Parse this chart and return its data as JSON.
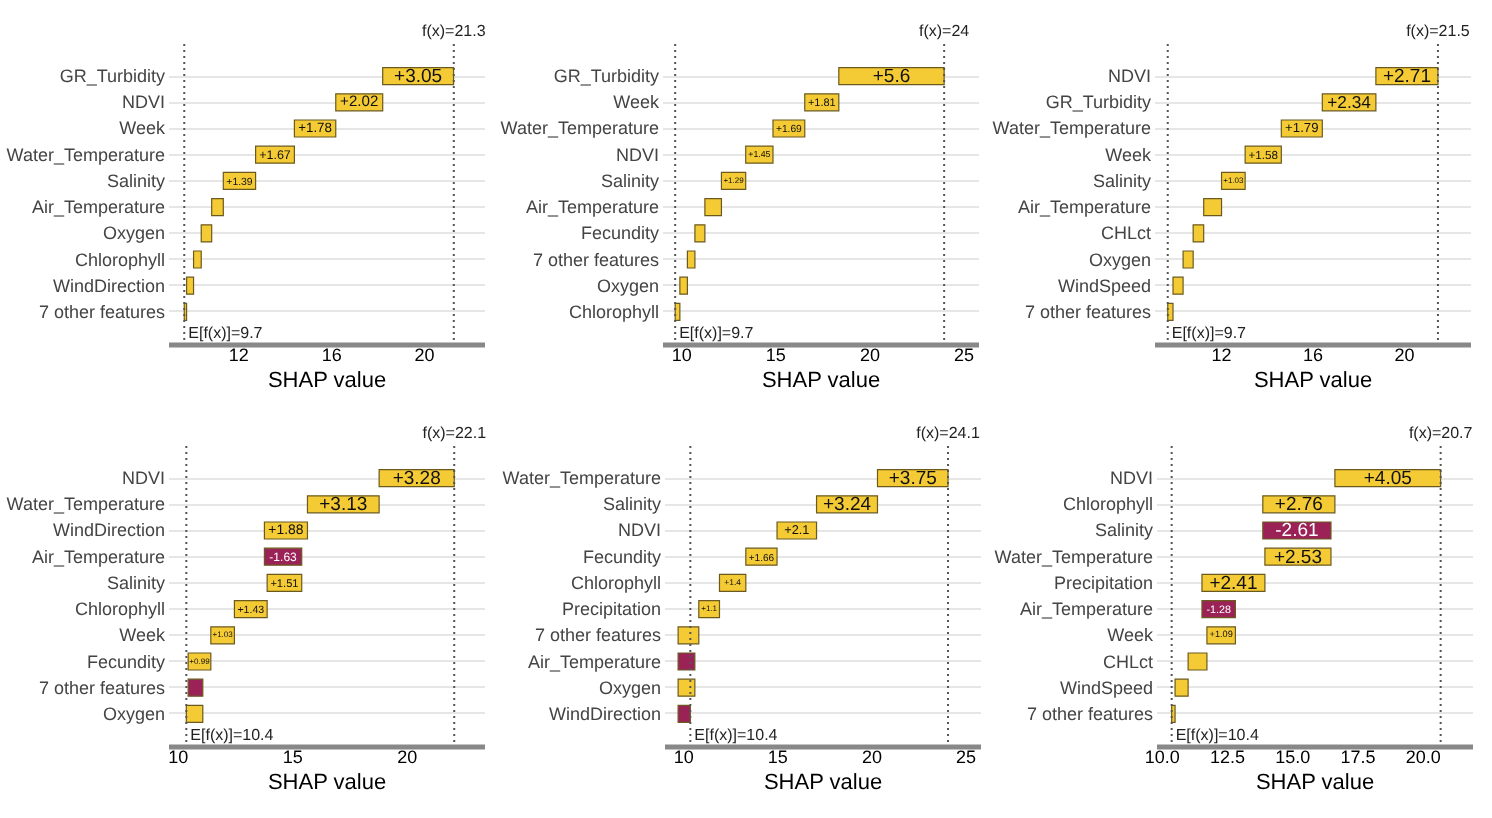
{
  "chart_data": [
    {
      "type": "bar",
      "orientation": "horizontal",
      "xlabel": "SHAP value",
      "grid": "y",
      "xlim": [
        9.0,
        22.6
      ],
      "xticks": [
        12,
        16,
        20
      ],
      "categories": [
        "GR_Turbidity",
        "NDVI",
        "Week",
        "Water_Temperature",
        "Salinity",
        "Air_Temperature",
        "Oxygen",
        "Chlorophyll",
        "WindDirection",
        "7 other features"
      ],
      "values": [
        3.05,
        2.02,
        1.78,
        1.67,
        1.39,
        0.5,
        0.45,
        0.33,
        0.3,
        0.1
      ],
      "base": [
        18.24,
        16.22,
        14.44,
        12.77,
        11.38,
        10.88,
        10.43,
        10.1,
        9.8,
        9.7
      ],
      "colors": [
        "#f4ca35",
        "#f4ca35",
        "#f4ca35",
        "#f4ca35",
        "#f4ca35",
        "#f4ca35",
        "#f4ca35",
        "#f4ca35",
        "#f4ca35",
        "#f4ca35"
      ],
      "value_labels": [
        "+3.05",
        "+2.02",
        "+1.78",
        "+1.67",
        "+1.39",
        null,
        null,
        null,
        null,
        null
      ],
      "ref_lines": [
        {
          "axis": "x",
          "value": 9.7,
          "label": "E[f(x)]=9.7",
          "line_style": "dotted"
        },
        {
          "axis": "x",
          "value": 21.3,
          "label": "f(x)=21.3",
          "line_style": "dotted"
        }
      ]
    },
    {
      "type": "bar",
      "orientation": "horizontal",
      "xlabel": "SHAP value",
      "grid": "y",
      "xlim": [
        9.0,
        25.8
      ],
      "xticks": [
        10,
        15,
        20,
        25
      ],
      "categories": [
        "GR_Turbidity",
        "Week",
        "Water_Temperature",
        "NDVI",
        "Salinity",
        "Air_Temperature",
        "Fecundity",
        "7 other features",
        "Oxygen",
        "Chlorophyll"
      ],
      "values": [
        5.6,
        1.81,
        1.69,
        1.45,
        1.29,
        0.88,
        0.53,
        0.4,
        0.4,
        0.25
      ],
      "base": [
        18.4,
        16.59,
        14.9,
        13.45,
        12.16,
        11.28,
        10.75,
        10.35,
        9.95,
        9.7
      ],
      "colors": [
        "#f4ca35",
        "#f4ca35",
        "#f4ca35",
        "#f4ca35",
        "#f4ca35",
        "#f4ca35",
        "#f4ca35",
        "#f4ca35",
        "#f4ca35",
        "#f4ca35"
      ],
      "value_labels": [
        "+5.6",
        "+1.81",
        "+1.69",
        "+1.45",
        "+1.29",
        null,
        null,
        null,
        null,
        null
      ],
      "ref_lines": [
        {
          "axis": "x",
          "value": 9.7,
          "label": "E[f(x)]=9.7",
          "line_style": "dotted"
        },
        {
          "axis": "x",
          "value": 24,
          "label": "f(x)=24",
          "line_style": "dotted"
        }
      ]
    },
    {
      "type": "bar",
      "orientation": "horizontal",
      "xlabel": "SHAP value",
      "grid": "y",
      "xlim": [
        9.1,
        22.9
      ],
      "xticks": [
        12,
        16,
        20
      ],
      "categories": [
        "NDVI",
        "GR_Turbidity",
        "Water_Temperature",
        "Week",
        "Salinity",
        "Air_Temperature",
        "CHLct",
        "Oxygen",
        "WindSpeed",
        "7 other features"
      ],
      "values": [
        2.71,
        2.34,
        1.79,
        1.58,
        1.03,
        0.78,
        0.46,
        0.44,
        0.44,
        0.23
      ],
      "base": [
        18.79,
        16.45,
        14.66,
        13.08,
        12.05,
        11.27,
        10.81,
        10.37,
        9.93,
        9.7
      ],
      "colors": [
        "#f4ca35",
        "#f4ca35",
        "#f4ca35",
        "#f4ca35",
        "#f4ca35",
        "#f4ca35",
        "#f4ca35",
        "#f4ca35",
        "#f4ca35",
        "#f4ca35"
      ],
      "value_labels": [
        "+2.71",
        "+2.34",
        "+1.79",
        "+1.58",
        "+1.03",
        null,
        null,
        null,
        null,
        null
      ],
      "ref_lines": [
        {
          "axis": "x",
          "value": 9.7,
          "label": "E[f(x)]=9.7",
          "line_style": "dotted"
        },
        {
          "axis": "x",
          "value": 21.5,
          "label": "f(x)=21.5",
          "line_style": "dotted"
        }
      ]
    },
    {
      "type": "bar",
      "orientation": "horizontal",
      "xlabel": "SHAP value",
      "grid": "y",
      "xlim": [
        9.6,
        23.4
      ],
      "xticks": [
        10,
        15,
        20
      ],
      "categories": [
        "NDVI",
        "Water_Temperature",
        "WindDirection",
        "Air_Temperature",
        "Salinity",
        "Chlorophyll",
        "Week",
        "Fecundity",
        "7 other features",
        "Oxygen"
      ],
      "values": [
        3.28,
        3.13,
        1.88,
        -1.63,
        1.51,
        1.43,
        1.03,
        0.99,
        -0.64,
        0.72
      ],
      "base": [
        18.82,
        15.69,
        13.81,
        15.44,
        13.93,
        12.5,
        11.47,
        10.48,
        11.12,
        10.4
      ],
      "colors": [
        "#f4ca35",
        "#f4ca35",
        "#f4ca35",
        "#9b2257",
        "#f4ca35",
        "#f4ca35",
        "#f4ca35",
        "#f4ca35",
        "#9b2257",
        "#f4ca35"
      ],
      "value_labels": [
        "+3.28",
        "+3.13",
        "+1.88",
        "-1.63",
        "+1.51",
        "+1.43",
        "+1.03",
        "+0.99",
        null,
        null
      ],
      "ref_lines": [
        {
          "axis": "x",
          "value": 10.4,
          "label": "E[f(x)]=10.4",
          "line_style": "dotted"
        },
        {
          "axis": "x",
          "value": 22.1,
          "label": "f(x)=22.1",
          "line_style": "dotted"
        }
      ]
    },
    {
      "type": "bar",
      "orientation": "horizontal",
      "xlabel": "SHAP value",
      "grid": "y",
      "xlim": [
        9.0,
        25.8
      ],
      "xticks": [
        10,
        15,
        20,
        25
      ],
      "categories": [
        "Water_Temperature",
        "Salinity",
        "NDVI",
        "Fecundity",
        "Chlorophyll",
        "Precipitation",
        "7 other features",
        "Air_Temperature",
        "Oxygen",
        "WindDirection"
      ],
      "values": [
        3.75,
        3.24,
        2.1,
        1.66,
        1.4,
        1.1,
        1.1,
        -0.89,
        0.89,
        -0.65
      ],
      "base": [
        20.35,
        17.11,
        15.01,
        13.35,
        11.95,
        10.85,
        9.75,
        10.64,
        9.75,
        10.4
      ],
      "colors": [
        "#f4ca35",
        "#f4ca35",
        "#f4ca35",
        "#f4ca35",
        "#f4ca35",
        "#f4ca35",
        "#f4ca35",
        "#9b2257",
        "#f4ca35",
        "#9b2257"
      ],
      "value_labels": [
        "+3.75",
        "+3.24",
        "+2.1",
        "+1.66",
        "+1.4",
        "+1.1",
        null,
        null,
        null,
        null
      ],
      "ref_lines": [
        {
          "axis": "x",
          "value": 10.4,
          "label": "E[f(x)]=10.4",
          "line_style": "dotted"
        },
        {
          "axis": "x",
          "value": 24.1,
          "label": "f(x)=24.1",
          "line_style": "dotted"
        }
      ]
    },
    {
      "type": "bar",
      "orientation": "horizontal",
      "xlabel": "SHAP value",
      "grid": "y",
      "xlim": [
        9.8,
        21.9
      ],
      "xticks": [
        {
          "value": 10,
          "label": "10.0"
        },
        12.5,
        {
          "value": 15,
          "label": "15.0"
        },
        17.5,
        {
          "value": 20,
          "label": "20.0"
        }
      ],
      "categories": [
        "NDVI",
        "Chlorophyll",
        "Salinity",
        "Water_Temperature",
        "Precipitation",
        "Air_Temperature",
        "Week",
        "CHLct",
        "WindSpeed",
        "7 other features"
      ],
      "values": [
        4.05,
        2.76,
        -2.61,
        2.53,
        2.41,
        -1.28,
        1.09,
        0.72,
        0.5,
        0.13
      ],
      "base": [
        16.65,
        13.89,
        16.5,
        13.97,
        11.56,
        12.84,
        11.75,
        11.03,
        10.53,
        10.4
      ],
      "colors": [
        "#f4ca35",
        "#f4ca35",
        "#9b2257",
        "#f4ca35",
        "#f4ca35",
        "#9b2257",
        "#f4ca35",
        "#f4ca35",
        "#f4ca35",
        "#f4ca35"
      ],
      "value_labels": [
        "+4.05",
        "+2.76",
        "-2.61",
        "+2.53",
        "+2.41",
        "-1.28",
        "+1.09",
        null,
        null,
        null
      ],
      "ref_lines": [
        {
          "axis": "x",
          "value": 10.4,
          "label": "E[f(x)]=10.4",
          "line_style": "dotted"
        },
        {
          "axis": "x",
          "value": 20.7,
          "label": "f(x)=20.7",
          "line_style": "dotted"
        }
      ]
    }
  ]
}
